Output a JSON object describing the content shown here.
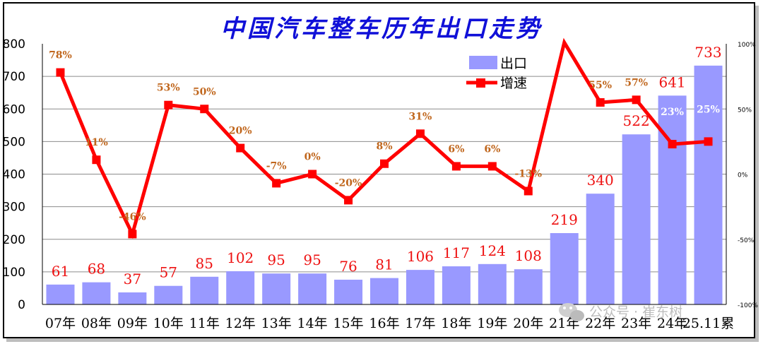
{
  "chart_data": {
    "type": "bar",
    "title": "中国汽车整车历年出口走势",
    "categories": [
      "07年",
      "08年",
      "09年",
      "10年",
      "11年",
      "12年",
      "13年",
      "14年",
      "15年",
      "16年",
      "17年",
      "18年",
      "19年",
      "20年",
      "21年",
      "22年",
      "23年",
      "24年",
      "25.11累"
    ],
    "series": [
      {
        "name": "出口",
        "type": "bar",
        "axis": "left",
        "color": "#9999ff",
        "values": [
          61,
          68,
          37,
          57,
          85,
          102,
          95,
          95,
          76,
          81,
          106,
          117,
          124,
          108,
          219,
          340,
          522,
          641,
          733
        ],
        "labels": [
          "61",
          "68",
          "37",
          "57",
          "85",
          "102",
          "95",
          "95",
          "76",
          "81",
          "106",
          "117",
          "124",
          "108",
          "219",
          "340",
          "522",
          "641",
          "733"
        ]
      },
      {
        "name": "增速",
        "type": "line",
        "axis": "right",
        "color": "#ff0000",
        "values": [
          78,
          11,
          -46,
          53,
          50,
          20,
          -7,
          0,
          -20,
          8,
          31,
          6,
          6,
          -13,
          101,
          55,
          57,
          23,
          25
        ],
        "labels": [
          "78%",
          "11%",
          "-46%",
          "53%",
          "50%",
          "20%",
          "-7%",
          "0%",
          "-20%",
          "8%",
          "31%",
          "6%",
          "6%",
          "-13%",
          "",
          "55%",
          "57%",
          "23%",
          "25%"
        ]
      }
    ],
    "y_left": {
      "min": 0,
      "max": 800,
      "ticks": [
        "0",
        "100",
        "200",
        "300",
        "400",
        "500",
        "600",
        "700",
        "800"
      ]
    },
    "y_right": {
      "min": -100,
      "max": 100,
      "ticks": [
        "-100%",
        "-50%",
        "0%",
        "50%",
        "100%"
      ]
    },
    "grid": true,
    "legend": {
      "position": "top-right",
      "entries": [
        "出口",
        "增速"
      ]
    }
  },
  "watermark": {
    "icon": "wechat-icon",
    "text": "公众号 · 崔东树"
  }
}
